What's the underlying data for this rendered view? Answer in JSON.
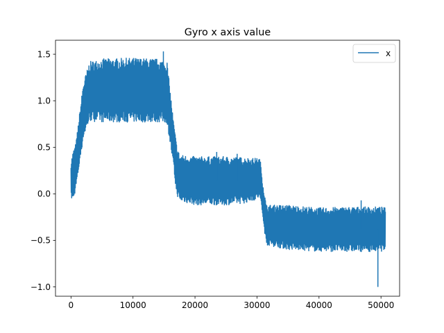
{
  "chart_data": {
    "type": "line",
    "title": "Gyro x axis value",
    "xlabel": "",
    "ylabel": "",
    "xlim": [
      -2500,
      53000
    ],
    "ylim": [
      -1.1,
      1.65
    ],
    "x_ticks": [
      0,
      10000,
      20000,
      30000,
      40000,
      50000
    ],
    "x_tick_labels": [
      "0",
      "10000",
      "20000",
      "30000",
      "40000",
      "50000"
    ],
    "y_ticks": [
      -1.0,
      -0.5,
      0.0,
      0.5,
      1.0,
      1.5
    ],
    "y_tick_labels": [
      "−1.0",
      "−0.5",
      "0.0",
      "0.5",
      "1.0",
      "1.5"
    ],
    "grid": false,
    "legend_position": "top-right",
    "colors": {
      "series": "#1f77b4"
    },
    "series": [
      {
        "name": "x",
        "note_points": "x = sample index, band = [min, max] of the noisy signal envelope",
        "x": [
          0,
          300,
          800,
          2000,
          3000,
          5000,
          10000,
          14000,
          15500,
          16500,
          17000,
          17500,
          20000,
          25000,
          28000,
          30500,
          31000,
          31500,
          35000,
          40000,
          45000,
          50000,
          50700
        ],
        "y_min": [
          -0.05,
          -0.08,
          0.05,
          0.6,
          0.78,
          0.77,
          0.77,
          0.77,
          0.76,
          0.3,
          0.0,
          -0.08,
          -0.12,
          -0.12,
          -0.1,
          -0.05,
          -0.3,
          -0.55,
          -0.6,
          -0.62,
          -0.62,
          -0.62,
          -0.6
        ],
        "y_max": [
          0.35,
          0.45,
          0.55,
          1.2,
          1.42,
          1.45,
          1.46,
          1.45,
          1.42,
          0.8,
          0.55,
          0.42,
          0.4,
          0.4,
          0.39,
          0.38,
          0.1,
          -0.12,
          -0.12,
          -0.15,
          -0.14,
          -0.14,
          -0.15
        ],
        "spikes": [
          {
            "x": 14900,
            "y": 1.53
          },
          {
            "x": 23500,
            "y": 0.45
          },
          {
            "x": 26800,
            "y": 0.43
          },
          {
            "x": 46800,
            "y": -0.07
          },
          {
            "x": 49500,
            "y": -1.0
          }
        ]
      }
    ]
  }
}
